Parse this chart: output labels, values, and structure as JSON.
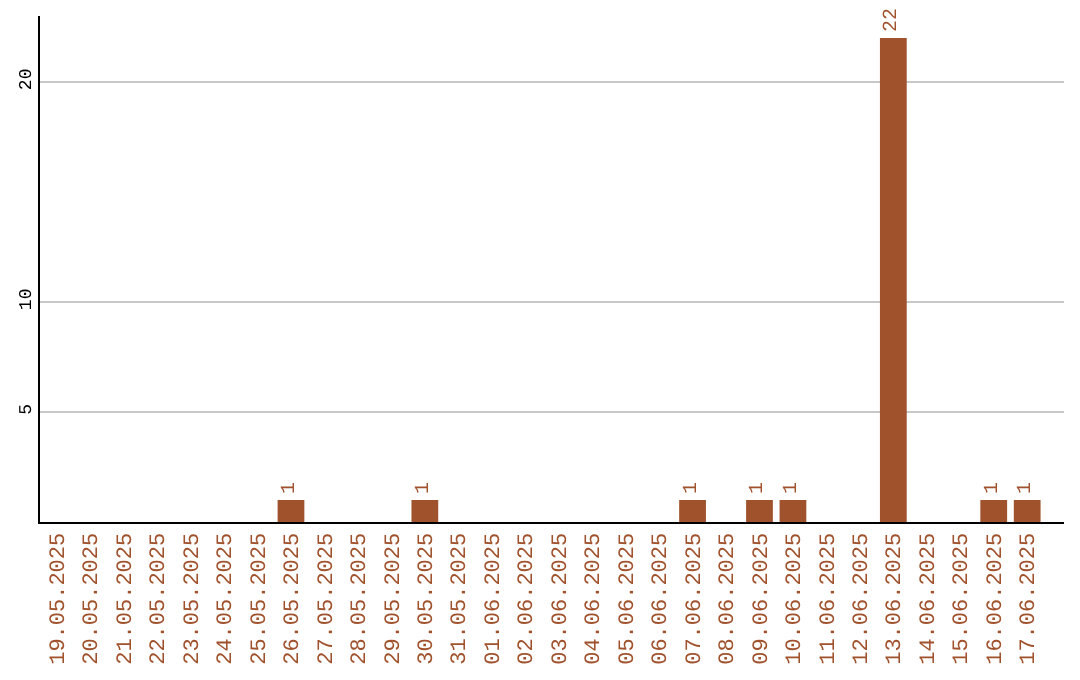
{
  "chart_data": {
    "type": "bar",
    "categories": [
      "19.05.2025",
      "20.05.2025",
      "21.05.2025",
      "22.05.2025",
      "23.05.2025",
      "24.05.2025",
      "25.05.2025",
      "26.05.2025",
      "27.05.2025",
      "28.05.2025",
      "29.05.2025",
      "30.05.2025",
      "31.05.2025",
      "01.06.2025",
      "02.06.2025",
      "03.06.2025",
      "04.06.2025",
      "05.06.2025",
      "06.06.2025",
      "07.06.2025",
      "08.06.2025",
      "09.06.2025",
      "10.06.2025",
      "11.06.2025",
      "12.06.2025",
      "13.06.2025",
      "14.06.2025",
      "15.06.2025",
      "16.06.2025",
      "17.06.2025"
    ],
    "values": [
      0,
      0,
      0,
      0,
      0,
      0,
      0,
      1,
      0,
      0,
      0,
      1,
      0,
      0,
      0,
      0,
      0,
      0,
      0,
      1,
      0,
      1,
      1,
      0,
      0,
      22,
      0,
      0,
      1,
      1
    ],
    "value_labels": [
      null,
      null,
      null,
      null,
      null,
      null,
      null,
      "1",
      null,
      null,
      null,
      "1",
      null,
      null,
      null,
      null,
      null,
      null,
      null,
      "1",
      null,
      "1",
      "1",
      null,
      null,
      "22",
      null,
      null,
      "1",
      "1"
    ],
    "color": "#a0522d",
    "ylim": [
      0,
      23
    ],
    "yticks": [
      5,
      10,
      20
    ],
    "grid": "y"
  }
}
